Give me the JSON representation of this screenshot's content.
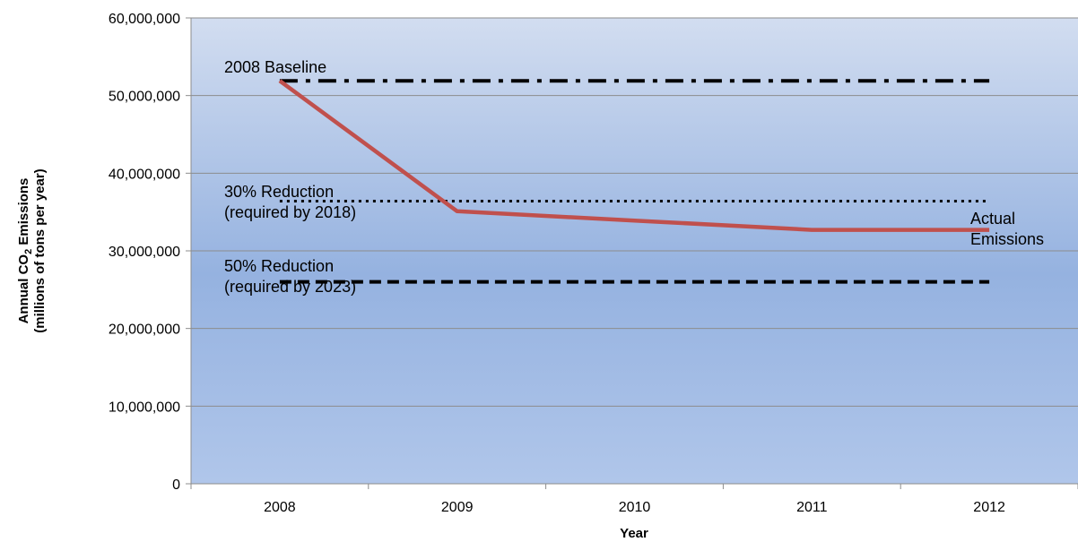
{
  "chart_data": {
    "type": "line",
    "title": "",
    "xlabel": "Year",
    "ylabel": {
      "line1_prefix": "Annual CO",
      "line1_sub": "2",
      "line1_suffix": " Emissions",
      "line2": "(millions of tons per year)"
    },
    "categories": [
      "2008",
      "2009",
      "2010",
      "2011",
      "2012"
    ],
    "ylim": [
      0,
      60000000
    ],
    "yticks": [
      0,
      10000000,
      20000000,
      30000000,
      40000000,
      50000000,
      60000000
    ],
    "ytick_labels": [
      "0",
      "10,000,000",
      "20,000,000",
      "30,000,000",
      "40,000,000",
      "50,000,000",
      "60,000,000"
    ],
    "grid": true,
    "series": [
      {
        "name": "Actual Emissions",
        "style": "solid",
        "color": "#c0504d",
        "values": [
          51900000,
          35100000,
          33900000,
          32700000,
          32700000
        ]
      }
    ],
    "reference_lines": [
      {
        "value": 51900000,
        "style": "dash-dot",
        "color": "#000000"
      },
      {
        "value": 36400000,
        "style": "dotted",
        "color": "#000000"
      },
      {
        "value": 26000000,
        "style": "dashed",
        "color": "#000000"
      }
    ],
    "annotations": [
      {
        "lines": [
          "2008 Baseline"
        ]
      },
      {
        "lines": [
          "30% Reduction",
          "(required by 2018)"
        ]
      },
      {
        "lines": [
          "50% Reduction",
          "(required by 2023)"
        ]
      },
      {
        "lines": [
          "Actual",
          "Emissions"
        ]
      }
    ],
    "background_gradient": [
      "#d2ddf0",
      "#95b2e0",
      "#b0c6ea"
    ]
  }
}
